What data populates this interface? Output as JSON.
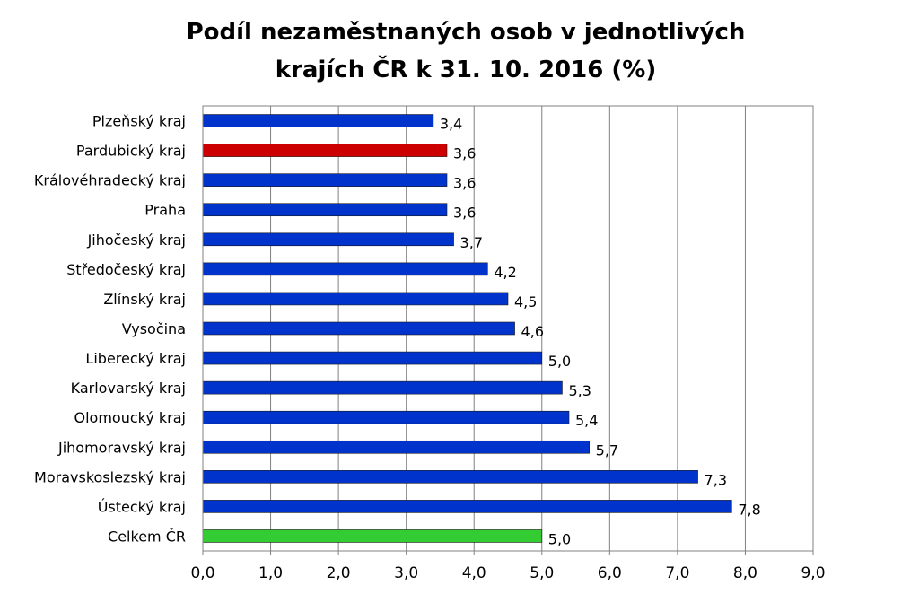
{
  "chart_data": {
    "type": "bar",
    "orientation": "horizontal",
    "title_lines": [
      "Podíl nezaměstnaných osob v jednotlivých",
      "krajích ČR k 31. 10. 2016 (%)"
    ],
    "categories": [
      "Plzeňský kraj",
      "Pardubický kraj",
      "Královéhradecký kraj",
      "Praha",
      "Jihočeský kraj",
      "Středočeský kraj",
      "Zlínský kraj",
      "Vysočina",
      "Liberecký kraj",
      "Karlovarský kraj",
      "Olomoucký kraj",
      "Jihomoravský kraj",
      "Moravskoslezský kraj",
      "Ústecký kraj",
      "Celkem ČR"
    ],
    "values": [
      3.4,
      3.6,
      3.6,
      3.6,
      3.7,
      4.2,
      4.5,
      4.6,
      5.0,
      5.3,
      5.4,
      5.7,
      7.3,
      7.8,
      5.0
    ],
    "value_labels": [
      "3,4",
      "3,6",
      "3,6",
      "3,6",
      "3,7",
      "4,2",
      "4,5",
      "4,6",
      "5,0",
      "5,3",
      "5,4",
      "5,7",
      "7,3",
      "7,8",
      "5,0"
    ],
    "bar_colors": [
      "#0033cc",
      "#cc0000",
      "#0033cc",
      "#0033cc",
      "#0033cc",
      "#0033cc",
      "#0033cc",
      "#0033cc",
      "#0033cc",
      "#0033cc",
      "#0033cc",
      "#0033cc",
      "#0033cc",
      "#0033cc",
      "#33cc33"
    ],
    "xlim": [
      0,
      9
    ],
    "xticks": [
      0,
      1,
      2,
      3,
      4,
      5,
      6,
      7,
      8,
      9
    ],
    "xtick_labels": [
      "0,0",
      "1,0",
      "2,0",
      "3,0",
      "4,0",
      "5,0",
      "6,0",
      "7,0",
      "8,0",
      "9,0"
    ],
    "xlabel": "",
    "ylabel": "",
    "grid": "vertical",
    "legend": "none"
  }
}
